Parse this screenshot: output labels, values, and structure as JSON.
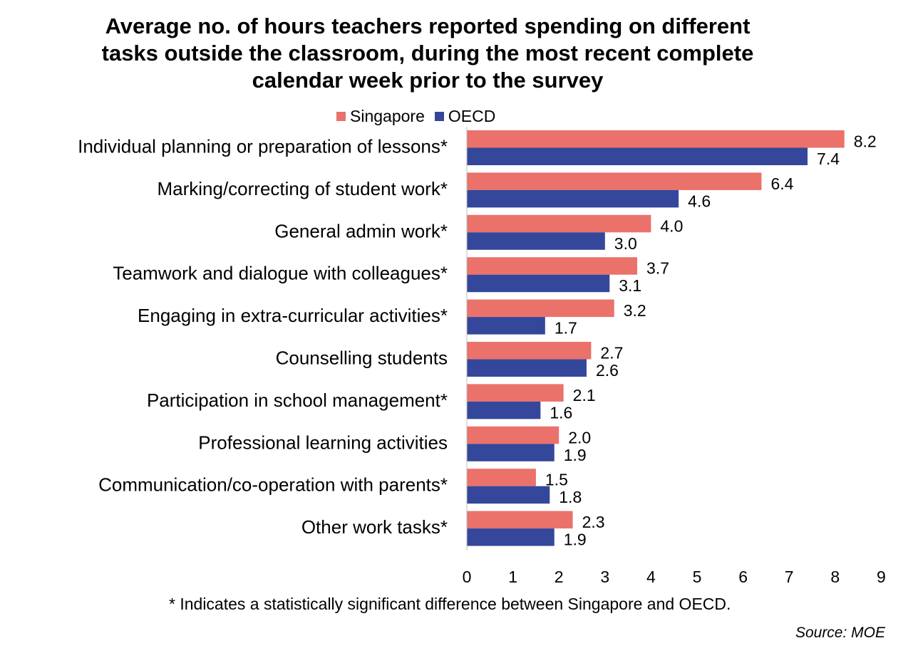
{
  "chart_data": {
    "type": "bar",
    "orientation": "horizontal",
    "title_lines": [
      "Average no. of hours teachers reported spending on different",
      "tasks outside the classroom, during the most recent complete",
      "calendar week prior to the survey"
    ],
    "categories": [
      "Individual planning or preparation of lessons*",
      "Marking/correcting of student work*",
      "General admin work*",
      "Teamwork and dialogue with colleagues*",
      "Engaging in extra-curricular activities*",
      "Counselling students",
      "Participation in school management*",
      "Professional learning activities",
      "Communication/co-operation with parents*",
      "Other work tasks*"
    ],
    "series": [
      {
        "name": "Singapore",
        "color": "#EB716B",
        "values": [
          8.2,
          6.4,
          4.0,
          3.7,
          3.2,
          2.7,
          2.1,
          2.0,
          1.5,
          2.3
        ],
        "labels": [
          "8.2",
          "6.4",
          "4.0",
          "3.7",
          "3.2",
          "2.7",
          "2.1",
          "2.0",
          "1.5",
          "2.3"
        ]
      },
      {
        "name": "OECD",
        "color": "#34479A",
        "values": [
          7.4,
          4.6,
          3.0,
          3.1,
          1.7,
          2.6,
          1.6,
          1.9,
          1.8,
          1.9
        ],
        "labels": [
          "7.4",
          "4.6",
          "3.0",
          "3.1",
          "1.7",
          "2.6",
          "1.6",
          "1.9",
          "1.8",
          "1.9"
        ]
      }
    ],
    "xlim": [
      0,
      9
    ],
    "xticks": [
      "0",
      "1",
      "2",
      "3",
      "4",
      "5",
      "6",
      "7",
      "8",
      "9"
    ],
    "grid": false,
    "legend_position": "top"
  },
  "footnote": "* Indicates a statistically significant difference between Singapore and OECD.",
  "source": "Source: MOE"
}
